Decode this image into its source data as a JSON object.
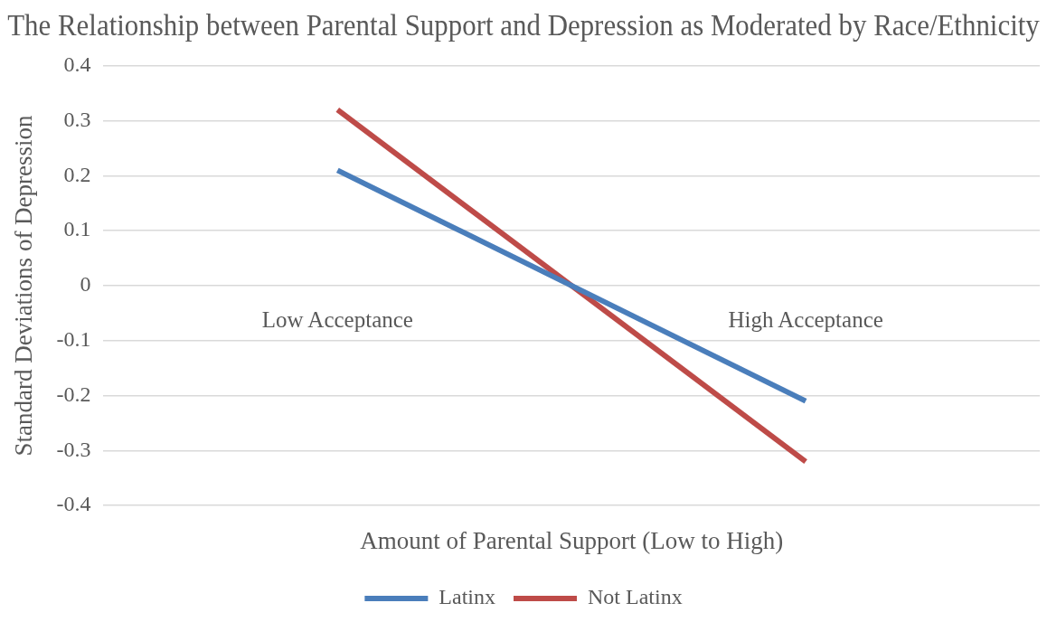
{
  "chart_data": {
    "type": "line",
    "title": "The Relationship between Parental Support and Depression as Moderated by Race/Ethnicity",
    "xlabel": "Amount of Parental Support (Low to High)",
    "ylabel": "Standard Deviations of Depression",
    "categories": [
      null,
      null
    ],
    "series": [
      {
        "name": "Latinx",
        "color": "#4a7ebb",
        "values": [
          0.21,
          -0.21
        ]
      },
      {
        "name": "Not Latinx",
        "color": "#be4b48",
        "values": [
          0.32,
          -0.32
        ]
      }
    ],
    "ylim": [
      -0.4,
      0.4
    ],
    "yticks": [
      -0.4,
      -0.3,
      -0.2,
      -0.1,
      0,
      0.1,
      0.2,
      0.3,
      0.4
    ],
    "grid": "y",
    "legend": "bottom",
    "marker": "none",
    "line_style": "solid",
    "annotations": [
      "Low Acceptance",
      "High Acceptance"
    ]
  }
}
